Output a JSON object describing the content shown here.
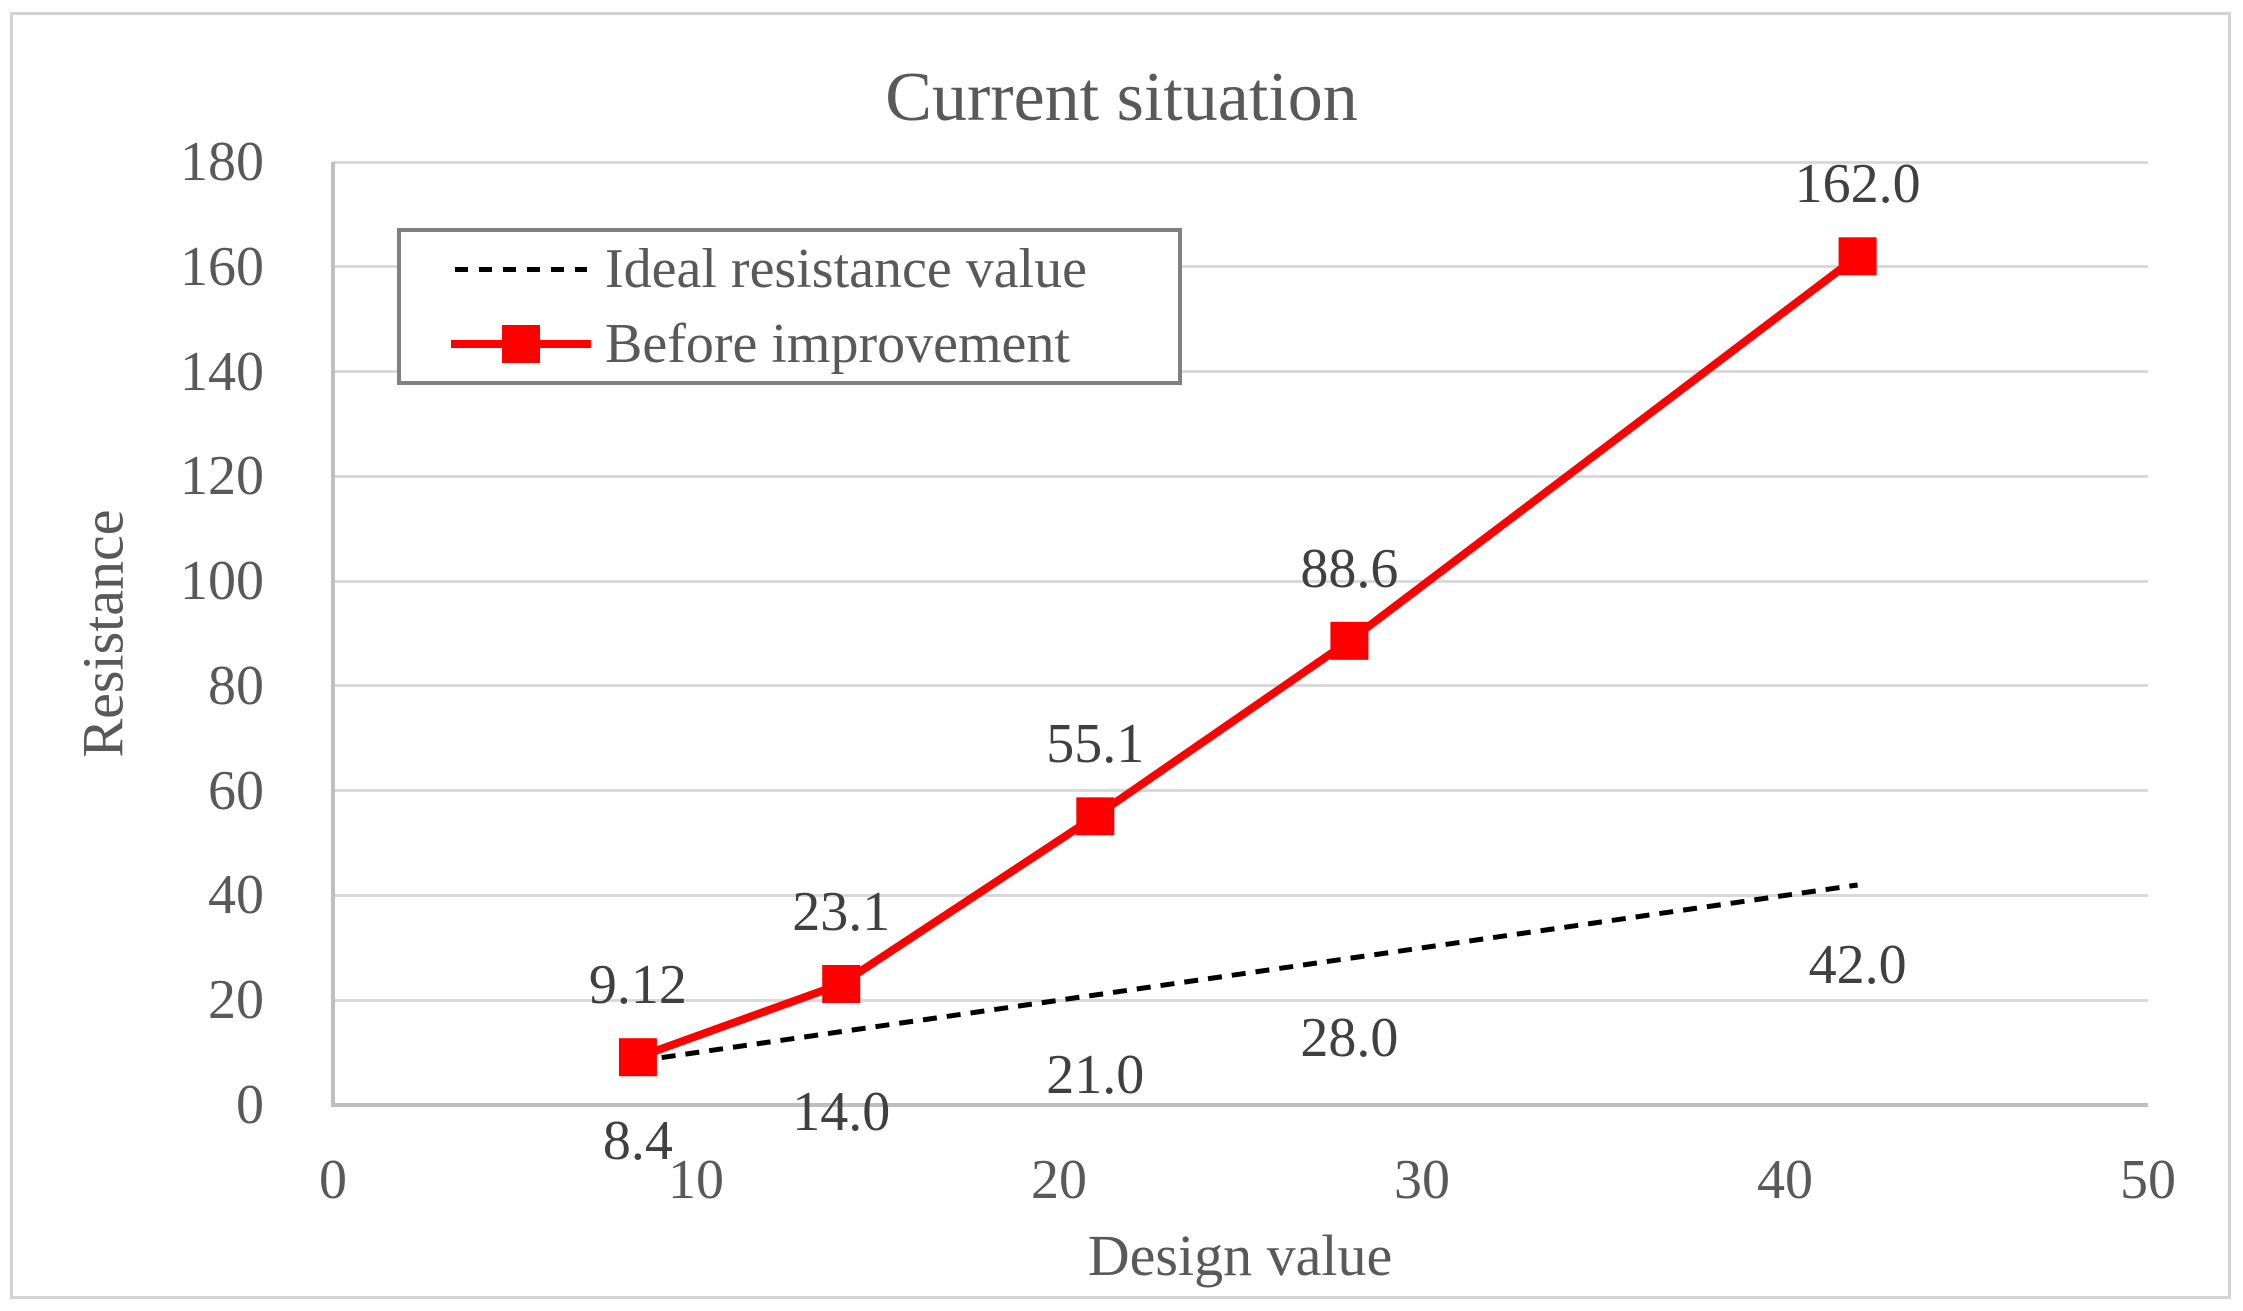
{
  "chart": {
    "title": "Current situation",
    "x_axis_title": "Design value",
    "y_axis_title": "Resistance"
  },
  "legend": {
    "items": [
      {
        "label": "Ideal resistance value",
        "sample": "black-dashed-line"
      },
      {
        "label": "Before improvement",
        "sample": "red-line-square-marker"
      }
    ]
  },
  "chart_data": {
    "type": "line",
    "title": "Current situation",
    "xlabel": "Design value",
    "ylabel": "Resistance",
    "xlim": [
      0,
      50
    ],
    "ylim": [
      0,
      180
    ],
    "x_ticks": [
      0,
      10,
      20,
      30,
      40,
      50
    ],
    "y_ticks": [
      0,
      20,
      40,
      60,
      80,
      100,
      120,
      140,
      160,
      180
    ],
    "grid": "horizontal-only",
    "legend_position": "inside-top-left",
    "x": [
      8.4,
      14,
      21,
      28,
      42
    ],
    "series": [
      {
        "name": "Ideal resistance value",
        "line_style": "dashed",
        "color": "#000000",
        "marker": "none",
        "values": [
          8.4,
          14.0,
          21.0,
          28.0,
          42.0
        ],
        "point_labels": [
          "8.4",
          "14.0",
          "21.0",
          "28.0",
          "42.0"
        ],
        "label_position": "below"
      },
      {
        "name": "Before improvement",
        "line_style": "solid",
        "color": "#ff0000",
        "marker": "square",
        "values": [
          9.12,
          23.1,
          55.1,
          88.6,
          162.0
        ],
        "point_labels": [
          "9.12",
          "23.1",
          "55.1",
          "88.6",
          "162.0"
        ],
        "label_position": "above"
      }
    ]
  },
  "colors": {
    "text": "#595959",
    "data_label_text": "#404040",
    "gridline": "#d9d9d9",
    "axis_line": "#bfbfbf",
    "legend_border": "#808080",
    "outer_border": "#d3d3d3",
    "series_ideal": "#000000",
    "series_before": "#ff0000"
  }
}
